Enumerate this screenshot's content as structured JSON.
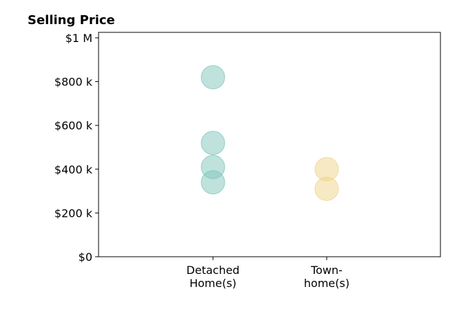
{
  "chart_data": {
    "type": "scatter",
    "title": "Selling Price",
    "xlabel": "",
    "ylabel": "",
    "categories": [
      [
        "Detached",
        "Home(s)"
      ],
      [
        "Town-",
        "home(s)"
      ]
    ],
    "ylim": [
      0,
      1025000
    ],
    "yticks": [
      {
        "value": 0,
        "label": "$0"
      },
      {
        "value": 200000,
        "label": "$200 k"
      },
      {
        "value": 400000,
        "label": "$400 k"
      },
      {
        "value": 600000,
        "label": "$600 k"
      },
      {
        "value": 800000,
        "label": "$800 k"
      },
      {
        "value": 1000000,
        "label": "$1 M"
      }
    ],
    "series": [
      {
        "category": 0,
        "color": "#7fc6bc",
        "values": [
          820000,
          520000,
          410000,
          340000
        ]
      },
      {
        "category": 1,
        "color": "#efd488",
        "values": [
          400000,
          310000
        ]
      }
    ],
    "grid": false,
    "legend": "none"
  }
}
